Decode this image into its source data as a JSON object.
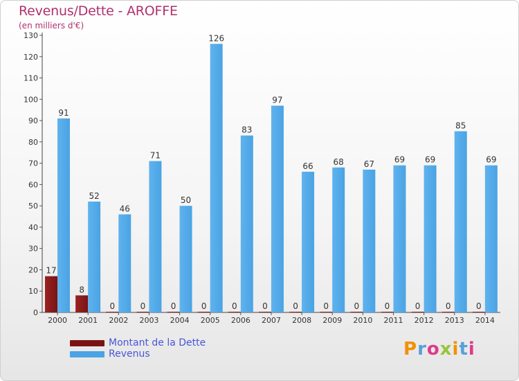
{
  "header": {
    "title": "Revenus/Dette - AROFFE",
    "subtitle": "(en milliers d'€)"
  },
  "legend": {
    "dette_label": "Montant de la Dette",
    "revenus_label": "Revenus"
  },
  "logo": {
    "letters": [
      "P",
      "r",
      "o",
      "x",
      "i",
      "t",
      "i"
    ],
    "colors": [
      "#f29100",
      "#5a9fd8",
      "#e03a8a",
      "#9ac43a",
      "#f29100",
      "#5a9fd8",
      "#e03a8a"
    ]
  },
  "colors": {
    "dette": "#7a1414",
    "revenus": "#4aa3e3"
  },
  "chart_data": {
    "type": "bar",
    "title": "Revenus/Dette - AROFFE",
    "subtitle": "(en milliers d'€)",
    "categories": [
      "2000",
      "2001",
      "2002",
      "2003",
      "2004",
      "2005",
      "2006",
      "2007",
      "2008",
      "2009",
      "2010",
      "2011",
      "2012",
      "2013",
      "2014"
    ],
    "series": [
      {
        "name": "Montant de la Dette",
        "values": [
          17,
          8,
          0,
          0,
          0,
          0,
          0,
          0,
          0,
          0,
          0,
          0,
          0,
          0,
          0
        ]
      },
      {
        "name": "Revenus",
        "values": [
          91,
          52,
          46,
          71,
          50,
          126,
          83,
          97,
          66,
          68,
          67,
          69,
          69,
          85,
          69
        ]
      }
    ],
    "ylim": [
      0,
      130
    ],
    "yticks": [
      0,
      10,
      20,
      30,
      40,
      50,
      60,
      70,
      80,
      90,
      100,
      110,
      120,
      130
    ],
    "grid": false,
    "legend_position": "bottom-left"
  }
}
